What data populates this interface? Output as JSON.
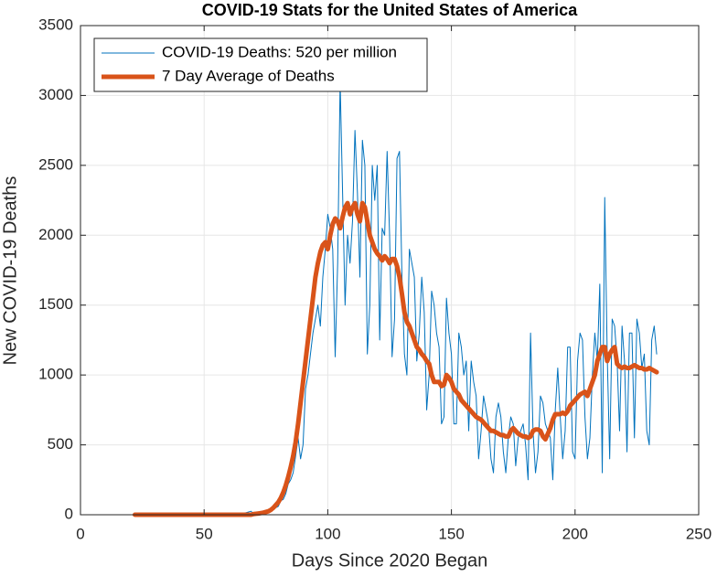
{
  "chart_data": {
    "type": "line",
    "title": "COVID-19 Stats for the United States of America",
    "xlabel": "Days Since 2020 Began",
    "ylabel": "New COVID-19 Deaths",
    "xlim": [
      0,
      250
    ],
    "xticks": [
      0,
      50,
      100,
      150,
      200,
      250
    ],
    "ylim": [
      0,
      3500
    ],
    "yticks": [
      0,
      500,
      1000,
      1500,
      2000,
      2500,
      3000,
      3500
    ],
    "grid": true,
    "legend": "northwest",
    "x": [
      22,
      23,
      24,
      25,
      26,
      27,
      28,
      29,
      30,
      31,
      32,
      33,
      34,
      35,
      36,
      37,
      38,
      39,
      40,
      41,
      42,
      43,
      44,
      45,
      46,
      47,
      48,
      49,
      50,
      51,
      52,
      53,
      54,
      55,
      56,
      57,
      58,
      59,
      60,
      61,
      62,
      63,
      64,
      65,
      66,
      67,
      68,
      69,
      70,
      71,
      72,
      73,
      74,
      75,
      76,
      77,
      78,
      79,
      80,
      81,
      82,
      83,
      84,
      85,
      86,
      87,
      88,
      89,
      90,
      91,
      92,
      93,
      94,
      95,
      96,
      97,
      98,
      99,
      100,
      101,
      102,
      103,
      104,
      105,
      106,
      107,
      108,
      109,
      110,
      111,
      112,
      113,
      114,
      115,
      116,
      117,
      118,
      119,
      120,
      121,
      122,
      123,
      124,
      125,
      126,
      127,
      128,
      129,
      130,
      131,
      132,
      133,
      134,
      135,
      136,
      137,
      138,
      139,
      140,
      141,
      142,
      143,
      144,
      145,
      146,
      147,
      148,
      149,
      150,
      151,
      152,
      153,
      154,
      155,
      156,
      157,
      158,
      159,
      160,
      161,
      162,
      163,
      164,
      165,
      166,
      167,
      168,
      169,
      170,
      171,
      172,
      173,
      174,
      175,
      176,
      177,
      178,
      179,
      180,
      181,
      182,
      183,
      184,
      185,
      186,
      187,
      188,
      189,
      190,
      191,
      192,
      193,
      194,
      195,
      196,
      197,
      198,
      199,
      200,
      201,
      202,
      203,
      204,
      205,
      206,
      207,
      208,
      209,
      210,
      211,
      212,
      213,
      214,
      215,
      216,
      217,
      218,
      219,
      220,
      221,
      222,
      223,
      224,
      225,
      226,
      227,
      228,
      229,
      230,
      231,
      232,
      233
    ],
    "series": [
      {
        "name": "COVID-19 Deaths: 520 per million",
        "color": "#0072bd",
        "width": 1,
        "values": [
          0,
          0,
          0,
          0,
          0,
          0,
          0,
          0,
          0,
          0,
          0,
          0,
          0,
          0,
          0,
          0,
          0,
          0,
          0,
          0,
          0,
          0,
          0,
          0,
          0,
          0,
          0,
          0,
          0,
          0,
          0,
          0,
          0,
          0,
          0,
          0,
          0,
          0,
          1,
          2,
          3,
          5,
          7,
          10,
          12,
          15,
          20,
          25,
          5,
          8,
          10,
          12,
          15,
          20,
          25,
          30,
          40,
          50,
          60,
          100,
          110,
          150,
          220,
          250,
          300,
          420,
          550,
          400,
          500,
          900,
          1000,
          1150,
          1300,
          1400,
          1500,
          1350,
          1700,
          1900,
          2150,
          2050,
          1900,
          1130,
          1800,
          3100,
          2300,
          1500,
          2000,
          1800,
          2100,
          2750,
          2300,
          1700,
          2680,
          2500,
          1150,
          1500,
          2500,
          2250,
          2500,
          1250,
          2050,
          2000,
          2600,
          2000,
          1130,
          1400,
          2550,
          2600,
          1700,
          1150,
          1000,
          1900,
          1800,
          1700,
          1100,
          1300,
          1700,
          1450,
          750,
          1000,
          1600,
          1500,
          1300,
          1200,
          650,
          700,
          1550,
          1300,
          1150,
          650,
          650,
          1300,
          1200,
          1000,
          1100,
          600,
          1100,
          950,
          850,
          400,
          600,
          850,
          750,
          650,
          400,
          300,
          700,
          800,
          700,
          450,
          300,
          550,
          700,
          650,
          350,
          550,
          600,
          650,
          500,
          250,
          1300,
          600,
          300,
          450,
          850,
          800,
          650,
          600,
          550,
          250,
          750,
          1050,
          700,
          400,
          600,
          1200,
          1200,
          450,
          400,
          1100,
          1300,
          1250,
          700,
          400,
          550,
          1000,
          1300,
          1100,
          1650,
          300,
          2270,
          1150,
          400,
          1400,
          1350,
          1100,
          600,
          1350,
          1100,
          450,
          1300,
          1300,
          550,
          1400,
          1300,
          1050,
          1150,
          600,
          500,
          1250,
          1350,
          1150
        ]
      },
      {
        "name": "7 Day Average of Deaths",
        "color": "#d95319",
        "width": 5,
        "values": [
          0,
          0,
          0,
          0,
          0,
          0,
          0,
          0,
          0,
          0,
          0,
          0,
          0,
          0,
          0,
          0,
          0,
          0,
          0,
          0,
          0,
          0,
          0,
          0,
          0,
          0,
          0,
          0,
          0,
          0,
          0,
          0,
          0,
          0,
          0,
          0,
          0,
          0,
          0,
          0,
          0,
          0,
          0,
          0,
          0,
          0,
          0,
          0,
          5,
          7,
          9,
          12,
          15,
          20,
          25,
          35,
          50,
          70,
          90,
          120,
          160,
          210,
          270,
          340,
          420,
          520,
          650,
          800,
          950,
          1100,
          1250,
          1400,
          1550,
          1700,
          1800,
          1880,
          1930,
          1950,
          1900,
          2000,
          2080,
          2120,
          2100,
          2050,
          2130,
          2200,
          2230,
          2150,
          2200,
          2230,
          2150,
          2100,
          2230,
          2200,
          2100,
          2000,
          1950,
          1900,
          1870,
          1850,
          1820,
          1850,
          1830,
          1800,
          1830,
          1830,
          1780,
          1700,
          1580,
          1450,
          1380,
          1350,
          1300,
          1250,
          1200,
          1180,
          1150,
          1130,
          1100,
          1080,
          1000,
          950,
          950,
          950,
          920,
          930,
          1000,
          980,
          950,
          900,
          880,
          860,
          820,
          800,
          780,
          760,
          740,
          720,
          700,
          690,
          680,
          660,
          640,
          620,
          600,
          600,
          590,
          580,
          570,
          570,
          560,
          560,
          600,
          620,
          600,
          580,
          570,
          560,
          560,
          550,
          560,
          600,
          610,
          610,
          600,
          560,
          540,
          580,
          620,
          680,
          720,
          720,
          720,
          730,
          720,
          740,
          780,
          800,
          820,
          840,
          860,
          870,
          880,
          850,
          900,
          950,
          1000,
          1100,
          1150,
          1200,
          1200,
          1100,
          1150,
          1180,
          1200,
          1080,
          1060,
          1050,
          1060,
          1050,
          1050,
          1060,
          1070,
          1060,
          1050,
          1050,
          1040,
          1040,
          1050,
          1040,
          1030,
          1020
        ]
      }
    ]
  }
}
